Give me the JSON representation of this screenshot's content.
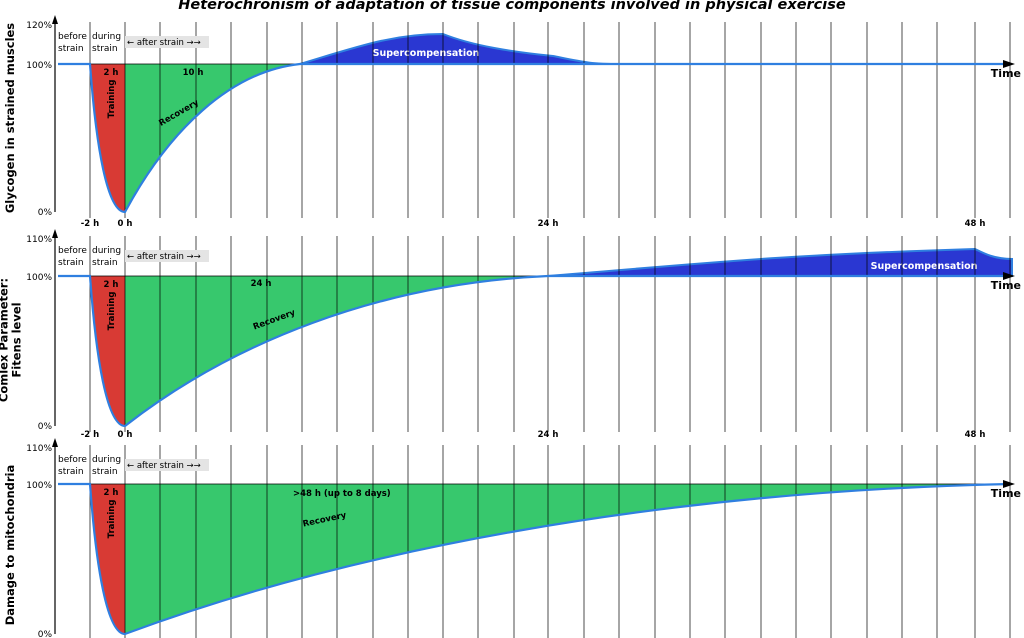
{
  "title": "Heterochronism of adaptation of tissue components involved in physical exercise",
  "colors": {
    "training": "#d83a34",
    "recovery": "#37c86d",
    "supercompensation": "#2a37d2",
    "curve": "#2f7fe0",
    "grid": "#000000",
    "label_bg": "#e4e4e4"
  },
  "common": {
    "before_strain": [
      "before",
      "strain"
    ],
    "during_strain": [
      "during",
      "strain"
    ],
    "after_strain": "← after strain →→",
    "training_label": "Training",
    "training_duration": "2 h",
    "recovery_label": "Recovery",
    "supercompensation_label": "Supercompensation",
    "time_label": "Time"
  },
  "panels": [
    {
      "ylabel": [
        "Glycogen in strained muscles"
      ],
      "y_top_label": "120%",
      "y_mid_label": "100%",
      "y_bottom_label": "0%",
      "recovery_duration": "10 h",
      "x_tick_labels": [
        "-2 h",
        "0 h",
        "24 h",
        "48 h"
      ],
      "show_supercompensation": true
    },
    {
      "ylabel": [
        "Comlex Parameter:",
        "Fitens level"
      ],
      "y_top_label": "110%",
      "y_mid_label": "100%",
      "y_bottom_label": "0%",
      "recovery_duration": "24 h",
      "x_tick_labels": [
        "-2 h",
        "0 h",
        "24 h",
        "48 h"
      ],
      "show_supercompensation": true
    },
    {
      "ylabel": [
        "Damage to mitochondria"
      ],
      "y_top_label": "110%",
      "y_mid_label": "100%",
      "y_bottom_label": "0%",
      "recovery_duration": ">48 h (up to 8 days)",
      "x_tick_labels": [],
      "show_supercompensation": false
    }
  ]
}
